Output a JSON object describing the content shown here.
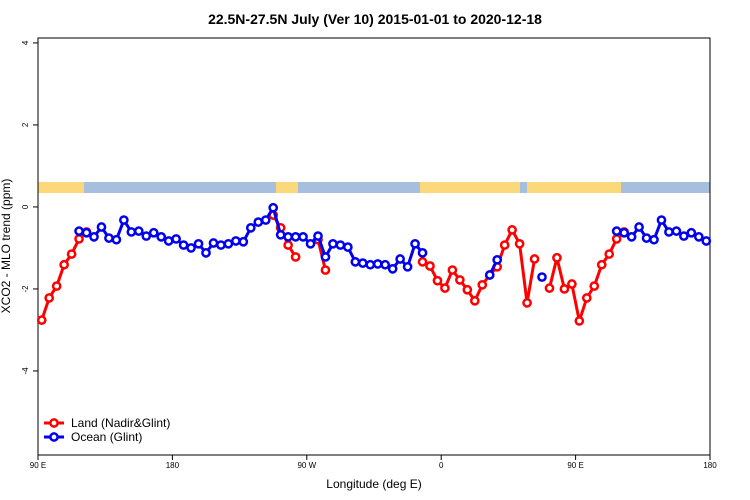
{
  "chart_data": {
    "type": "line",
    "title": "22.5N-27.5N July (Ver 10)   2015-01-01 to 2020-12-18",
    "xlabel": "Longitude (deg E)",
    "ylabel": "XCO2 - MLO trend (ppm)",
    "xlim": [
      90,
      540
    ],
    "ylim": [
      -6.05,
      4.12
    ],
    "xticks": [
      {
        "value": 90,
        "label": "90 E"
      },
      180,
      {
        "value": 270,
        "label": "90 W"
      },
      {
        "value": 360,
        "label": "0"
      },
      {
        "value": 450,
        "label": "90 E"
      },
      {
        "value": 540,
        "label": "180"
      }
    ],
    "yticks": [
      4,
      2,
      0,
      -2,
      -4
    ],
    "grid": false,
    "legend": "bottom-left",
    "x": [
      92.5,
      97.5,
      102.5,
      107.5,
      112.5,
      117.5,
      122.5,
      127.5,
      132.5,
      137.5,
      142.5,
      147.5,
      152.5,
      157.5,
      162.5,
      167.5,
      172.5,
      177.5,
      182.5,
      187.5,
      192.5,
      197.5,
      202.5,
      207.5,
      212.5,
      217.5,
      222.5,
      227.5,
      232.5,
      237.5,
      242.5,
      247.5,
      252.5,
      257.5,
      262.5,
      267.5,
      272.5,
      277.5,
      282.5,
      287.5,
      292.5,
      297.5,
      302.5,
      307.5,
      312.5,
      317.5,
      322.5,
      327.5,
      332.5,
      337.5,
      342.5,
      347.5,
      352.5,
      357.5,
      362.5,
      367.5,
      372.5,
      377.5,
      382.5,
      387.5,
      392.5,
      397.5,
      402.5,
      407.5,
      412.5,
      417.5,
      422.5,
      427.5,
      432.5,
      437.5,
      442.5,
      447.5,
      452.5,
      457.5,
      462.5,
      467.5,
      472.5,
      477.5,
      482.5,
      487.5,
      492.5,
      497.5,
      502.5,
      507.5,
      512.5,
      517.5,
      522.5,
      527.5,
      532.5,
      537.5
    ],
    "series": [
      {
        "name": "Land (Nadir&Glint)",
        "color": "#ff0000",
        "values": [
          -2.76,
          -2.22,
          -1.93,
          -1.41,
          -1.15,
          -0.78,
          -0.61,
          null,
          null,
          null,
          null,
          null,
          null,
          null,
          null,
          null,
          null,
          null,
          null,
          null,
          null,
          null,
          null,
          null,
          null,
          null,
          null,
          null,
          null,
          null,
          null,
          -0.2,
          -0.51,
          -0.93,
          -1.22,
          null,
          null,
          -0.8,
          -1.54,
          null,
          null,
          null,
          null,
          null,
          null,
          null,
          null,
          null,
          null,
          null,
          null,
          -1.34,
          -1.44,
          -1.8,
          -1.98,
          -1.54,
          -1.78,
          -2.02,
          -2.29,
          -1.9,
          -1.66,
          -1.46,
          -0.93,
          -0.56,
          -0.9,
          -2.34,
          -1.27,
          null,
          -1.98,
          -1.24,
          -2.0,
          -1.88,
          -2.78,
          -2.22,
          -1.93,
          -1.41,
          -1.15,
          -0.78,
          -0.61,
          null,
          null,
          null,
          null,
          null,
          null,
          null,
          null,
          null,
          null,
          null
        ]
      },
      {
        "name": "Ocean (Glint)",
        "color": "#0000ee",
        "values": [
          null,
          null,
          null,
          null,
          null,
          -0.59,
          -0.63,
          -0.73,
          -0.49,
          -0.76,
          -0.8,
          -0.32,
          -0.61,
          -0.59,
          -0.71,
          -0.63,
          -0.73,
          -0.83,
          -0.78,
          -0.93,
          -1.0,
          -0.9,
          -1.12,
          -0.88,
          -0.93,
          -0.9,
          -0.83,
          -0.85,
          -0.51,
          -0.37,
          -0.32,
          -0.02,
          -0.68,
          -0.73,
          -0.73,
          -0.73,
          -0.9,
          -0.71,
          -1.22,
          -0.9,
          -0.93,
          -0.98,
          -1.34,
          -1.37,
          -1.41,
          -1.39,
          -1.41,
          -1.51,
          -1.27,
          -1.46,
          -0.9,
          -1.12,
          null,
          null,
          null,
          null,
          null,
          null,
          null,
          null,
          -1.66,
          -1.29,
          null,
          null,
          null,
          null,
          null,
          -1.71,
          null,
          null,
          null,
          null,
          null,
          null,
          null,
          null,
          null,
          -0.59,
          -0.63,
          -0.73,
          -0.49,
          -0.76,
          -0.8,
          -0.32,
          -0.61,
          -0.59,
          -0.71,
          -0.63,
          -0.73,
          -0.83
        ]
      }
    ]
  }
}
